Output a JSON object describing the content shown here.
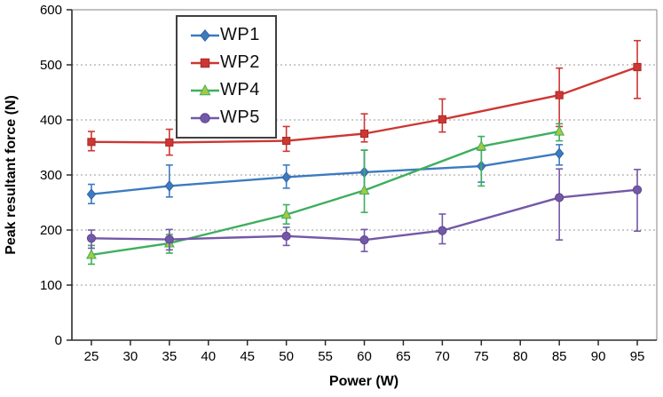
{
  "chart_data": {
    "type": "line",
    "title": "",
    "xlabel": "Power (W)",
    "ylabel": "Peak resultant force (N)",
    "xlim": [
      22.5,
      97.5
    ],
    "ylim": [
      0,
      600
    ],
    "x_ticks": [
      25,
      30,
      35,
      40,
      45,
      50,
      55,
      60,
      65,
      70,
      75,
      80,
      85,
      90,
      95
    ],
    "y_ticks": [
      0,
      100,
      200,
      300,
      400,
      500,
      600
    ],
    "grid": "horizontal-dotted",
    "legend_position": "top-center",
    "series": [
      {
        "name": "WP1",
        "marker": "diamond",
        "color": "#3D7AC0",
        "marker_fill": "#3D7AC0",
        "marker_stroke": "#2F66A5",
        "points": [
          {
            "x": 25,
            "y": 265,
            "lo": 248,
            "hi": 283
          },
          {
            "x": 35,
            "y": 280,
            "lo": 260,
            "hi": 318
          },
          {
            "x": 50,
            "y": 296,
            "lo": 276,
            "hi": 318
          },
          {
            "x": 60,
            "y": 305,
            "lo": 268,
            "hi": 345
          },
          {
            "x": 75,
            "y": 316,
            "lo": 287,
            "hi": 345
          },
          {
            "x": 85,
            "y": 339,
            "lo": 318,
            "hi": 355
          }
        ]
      },
      {
        "name": "WP2",
        "marker": "square",
        "color": "#CD3733",
        "marker_fill": "#CD3733",
        "marker_stroke": "#A82B28",
        "points": [
          {
            "x": 25,
            "y": 360,
            "lo": 344,
            "hi": 379
          },
          {
            "x": 35,
            "y": 359,
            "lo": 336,
            "hi": 383
          },
          {
            "x": 50,
            "y": 362,
            "lo": 343,
            "hi": 388
          },
          {
            "x": 60,
            "y": 375,
            "lo": 360,
            "hi": 411
          },
          {
            "x": 70,
            "y": 401,
            "lo": 378,
            "hi": 438
          },
          {
            "x": 85,
            "y": 445,
            "lo": 388,
            "hi": 494
          },
          {
            "x": 95,
            "y": 496,
            "lo": 439,
            "hi": 544
          }
        ]
      },
      {
        "name": "WP4",
        "marker": "triangle",
        "color": "#3FAE5E",
        "marker_fill": "#A4C93F",
        "marker_stroke": "#3FAE5E",
        "points": [
          {
            "x": 25,
            "y": 155,
            "lo": 138,
            "hi": 172
          },
          {
            "x": 35,
            "y": 176,
            "lo": 158,
            "hi": 192
          },
          {
            "x": 50,
            "y": 228,
            "lo": 211,
            "hi": 246
          },
          {
            "x": 60,
            "y": 272,
            "lo": 232,
            "hi": 345
          },
          {
            "x": 75,
            "y": 352,
            "lo": 280,
            "hi": 370
          },
          {
            "x": 85,
            "y": 379,
            "lo": 362,
            "hi": 393
          }
        ]
      },
      {
        "name": "WP5",
        "marker": "circle",
        "color": "#7458A8",
        "marker_fill": "#7458A8",
        "marker_stroke": "#5F4590",
        "points": [
          {
            "x": 25,
            "y": 185,
            "lo": 167,
            "hi": 200
          },
          {
            "x": 35,
            "y": 183,
            "lo": 164,
            "hi": 201
          },
          {
            "x": 50,
            "y": 189,
            "lo": 172,
            "hi": 205
          },
          {
            "x": 60,
            "y": 182,
            "lo": 161,
            "hi": 201
          },
          {
            "x": 70,
            "y": 199,
            "lo": 175,
            "hi": 229
          },
          {
            "x": 85,
            "y": 259,
            "lo": 182,
            "hi": 311
          },
          {
            "x": 95,
            "y": 273,
            "lo": 198,
            "hi": 310
          }
        ]
      }
    ],
    "style": {
      "grid_color": "#9a9a9a",
      "frame_color": "#9a9a9a",
      "axis_color": "#2b2b2b",
      "background": "#ffffff"
    }
  }
}
